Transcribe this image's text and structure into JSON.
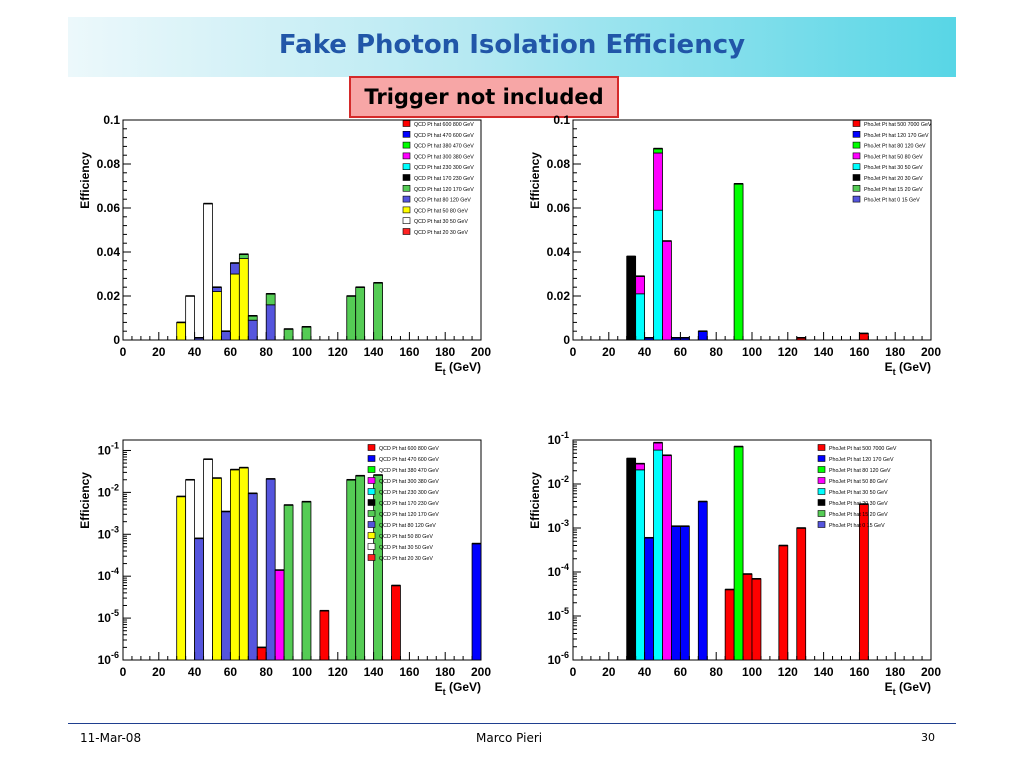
{
  "title": "Fake Photon Isolation Efficiency",
  "note": "Trigger not included",
  "footer": {
    "date": "11-Mar-08",
    "author": "Marco Pieri",
    "page": "30"
  },
  "chart_data": [
    {
      "type": "bar",
      "xlabel_main": "E",
      "xlabel_sub": "t",
      "xlabel_unit": " (GeV)",
      "ylabel": "Efficiency",
      "xlim": [
        0,
        200
      ],
      "ylim": [
        0,
        0.1
      ],
      "xticks": [
        0,
        20,
        40,
        60,
        80,
        100,
        120,
        140,
        160,
        180,
        200
      ],
      "yticks": [
        "0",
        "0.02",
        "0.04",
        "0.06",
        "0.08",
        "0.1"
      ],
      "yscale": "linear",
      "grid": false,
      "legend_position": "top-right",
      "bin_width": 5,
      "legend": [
        {
          "name": "QCD Pt hat 600 800 GeV",
          "color": "#ff0000"
        },
        {
          "name": "QCD Pt hat 470 600 GeV",
          "color": "#0000ff"
        },
        {
          "name": "QCD Pt hat 380 470 GeV",
          "color": "#00ff00"
        },
        {
          "name": "QCD Pt hat 300 380 GeV",
          "color": "#ff00ff"
        },
        {
          "name": "QCD Pt hat 230 300 GeV",
          "color": "#00ffff"
        },
        {
          "name": "QCD Pt hat 170 230 GeV",
          "color": "#000000"
        },
        {
          "name": "QCD Pt hat 120 170 GeV",
          "color": "#55cc55"
        },
        {
          "name": "QCD Pt hat 80 120 GeV",
          "color": "#5555dd"
        },
        {
          "name": "QCD Pt hat 50 80 GeV",
          "color": "#ffff00"
        },
        {
          "name": "QCD Pt hat 30 50 GeV",
          "color": "#ffffff"
        },
        {
          "name": "QCD Pt hat 20 30 GeV",
          "color": "#ff2222"
        }
      ],
      "bins": [
        {
          "x": 30,
          "segments": [
            {
              "color": "#ffff00",
              "value": 0.008
            }
          ]
        },
        {
          "x": 35,
          "segments": [
            {
              "color": "#ffffff",
              "value": 0.02
            }
          ]
        },
        {
          "x": 40,
          "segments": [
            {
              "color": "#5555dd",
              "value": 0.001
            }
          ]
        },
        {
          "x": 45,
          "segments": [
            {
              "color": "#ffffff",
              "value": 0.062
            }
          ]
        },
        {
          "x": 50,
          "segments": [
            {
              "color": "#ffff00",
              "value": 0.022
            },
            {
              "color": "#5555dd",
              "value": 0.002
            }
          ]
        },
        {
          "x": 55,
          "segments": [
            {
              "color": "#5555dd",
              "value": 0.004
            }
          ]
        },
        {
          "x": 60,
          "segments": [
            {
              "color": "#ffff00",
              "value": 0.03
            },
            {
              "color": "#5555dd",
              "value": 0.005
            }
          ]
        },
        {
          "x": 65,
          "segments": [
            {
              "color": "#ffff00",
              "value": 0.037
            },
            {
              "color": "#55cc55",
              "value": 0.002
            }
          ]
        },
        {
          "x": 70,
          "segments": [
            {
              "color": "#5555dd",
              "value": 0.009
            },
            {
              "color": "#55cc55",
              "value": 0.002
            }
          ]
        },
        {
          "x": 80,
          "segments": [
            {
              "color": "#5555dd",
              "value": 0.016
            },
            {
              "color": "#55cc55",
              "value": 0.005
            }
          ]
        },
        {
          "x": 90,
          "segments": [
            {
              "color": "#55cc55",
              "value": 0.005
            }
          ]
        },
        {
          "x": 100,
          "segments": [
            {
              "color": "#55cc55",
              "value": 0.006
            }
          ]
        },
        {
          "x": 125,
          "segments": [
            {
              "color": "#55cc55",
              "value": 0.02
            }
          ]
        },
        {
          "x": 130,
          "segments": [
            {
              "color": "#55cc55",
              "value": 0.024
            }
          ]
        },
        {
          "x": 140,
          "segments": [
            {
              "color": "#55cc55",
              "value": 0.026
            }
          ]
        }
      ]
    },
    {
      "type": "bar",
      "xlabel_main": "E",
      "xlabel_sub": "t",
      "xlabel_unit": " (GeV)",
      "ylabel": "Efficiency",
      "xlim": [
        0,
        200
      ],
      "ylim": [
        0,
        0.1
      ],
      "xticks": [
        0,
        20,
        40,
        60,
        80,
        100,
        120,
        140,
        160,
        180,
        200
      ],
      "yticks": [
        "0",
        "0.02",
        "0.04",
        "0.06",
        "0.08",
        "0.1"
      ],
      "yscale": "linear",
      "grid": false,
      "legend_position": "top-right",
      "bin_width": 5,
      "legend": [
        {
          "name": "PhoJet Pt hat 500 7000 GeV",
          "color": "#ff0000"
        },
        {
          "name": "PhoJet Pt hat 120 170 GeV",
          "color": "#0000ff"
        },
        {
          "name": "PhoJet Pt hat 80 120 GeV",
          "color": "#00ff00"
        },
        {
          "name": "PhoJet Pt hat 50 80 GeV",
          "color": "#ff00ff"
        },
        {
          "name": "PhoJet Pt hat 30 50 GeV",
          "color": "#00ffff"
        },
        {
          "name": "PhoJet Pt hat 20 30 GeV",
          "color": "#000000"
        },
        {
          "name": "PhoJet Pt hat 15 20 GeV",
          "color": "#55cc55"
        },
        {
          "name": "PhoJet Pt hat 0 15 GeV",
          "color": "#5555dd"
        }
      ],
      "bins": [
        {
          "x": 30,
          "segments": [
            {
              "color": "#000000",
              "value": 0.038
            }
          ]
        },
        {
          "x": 35,
          "segments": [
            {
              "color": "#00ffff",
              "value": 0.021
            },
            {
              "color": "#ff00ff",
              "value": 0.008
            }
          ]
        },
        {
          "x": 40,
          "segments": [
            {
              "color": "#0000ff",
              "value": 0.001
            }
          ]
        },
        {
          "x": 45,
          "segments": [
            {
              "color": "#00ffff",
              "value": 0.059
            },
            {
              "color": "#ff00ff",
              "value": 0.026
            },
            {
              "color": "#00ff00",
              "value": 0.002
            }
          ]
        },
        {
          "x": 50,
          "segments": [
            {
              "color": "#ff00ff",
              "value": 0.045
            }
          ]
        },
        {
          "x": 55,
          "segments": [
            {
              "color": "#0000ff",
              "value": 0.001
            }
          ]
        },
        {
          "x": 60,
          "segments": [
            {
              "color": "#0000ff",
              "value": 0.001
            }
          ]
        },
        {
          "x": 70,
          "segments": [
            {
              "color": "#0000ff",
              "value": 0.004
            }
          ]
        },
        {
          "x": 90,
          "segments": [
            {
              "color": "#00ff00",
              "value": 0.071
            }
          ]
        },
        {
          "x": 125,
          "segments": [
            {
              "color": "#ff0000",
              "value": 0.001
            }
          ]
        },
        {
          "x": 160,
          "segments": [
            {
              "color": "#ff0000",
              "value": 0.003
            }
          ]
        }
      ]
    },
    {
      "type": "bar",
      "xlabel_main": "E",
      "xlabel_sub": "t",
      "xlabel_unit": " (GeV)",
      "ylabel": "Efficiency",
      "xlim": [
        0,
        200
      ],
      "yscale": "log",
      "ylim_exp": [
        -6,
        -0.75
      ],
      "ytick_exps": [
        -6,
        -5,
        -4,
        -3,
        -2,
        -1
      ],
      "xticks": [
        0,
        20,
        40,
        60,
        80,
        100,
        120,
        140,
        160,
        180,
        200
      ],
      "grid": false,
      "legend_position": "top-right",
      "bin_width": 5,
      "legend": [
        {
          "name": "QCD Pt hat 600 800 GeV",
          "color": "#ff0000"
        },
        {
          "name": "QCD Pt hat 470 600 GeV",
          "color": "#0000ff"
        },
        {
          "name": "QCD Pt hat 380 470 GeV",
          "color": "#00ff00"
        },
        {
          "name": "QCD Pt hat 300 380 GeV",
          "color": "#ff00ff"
        },
        {
          "name": "QCD Pt hat 230 300 GeV",
          "color": "#00ffff"
        },
        {
          "name": "QCD Pt hat 170 230 GeV",
          "color": "#000000"
        },
        {
          "name": "QCD Pt hat 120 170 GeV",
          "color": "#55cc55"
        },
        {
          "name": "QCD Pt hat 80 120 GeV",
          "color": "#5555dd"
        },
        {
          "name": "QCD Pt hat 50 80 GeV",
          "color": "#ffff00"
        },
        {
          "name": "QCD Pt hat 30 50 GeV",
          "color": "#ffffff"
        },
        {
          "name": "QCD Pt hat 20 30 GeV",
          "color": "#ff2222"
        }
      ],
      "bins": [
        {
          "x": 30,
          "segments": [
            {
              "color": "#ffff00",
              "value": 0.008
            }
          ]
        },
        {
          "x": 35,
          "segments": [
            {
              "color": "#ffffff",
              "value": 0.02
            }
          ]
        },
        {
          "x": 40,
          "segments": [
            {
              "color": "#5555dd",
              "value": 0.0008
            }
          ]
        },
        {
          "x": 45,
          "segments": [
            {
              "color": "#ffffff",
              "value": 0.062
            }
          ]
        },
        {
          "x": 50,
          "segments": [
            {
              "color": "#ffff00",
              "value": 0.022
            }
          ]
        },
        {
          "x": 55,
          "segments": [
            {
              "color": "#5555dd",
              "value": 0.0035
            }
          ]
        },
        {
          "x": 60,
          "segments": [
            {
              "color": "#ffff00",
              "value": 0.035
            }
          ]
        },
        {
          "x": 65,
          "segments": [
            {
              "color": "#ffff00",
              "value": 0.039
            }
          ]
        },
        {
          "x": 70,
          "segments": [
            {
              "color": "#5555dd",
              "value": 0.0095
            }
          ]
        },
        {
          "x": 75,
          "segments": [
            {
              "color": "#ff0000",
              "value": 2e-06
            }
          ]
        },
        {
          "x": 80,
          "segments": [
            {
              "color": "#5555dd",
              "value": 0.021
            }
          ]
        },
        {
          "x": 85,
          "segments": [
            {
              "color": "#ff00ff",
              "value": 0.00014
            }
          ]
        },
        {
          "x": 90,
          "segments": [
            {
              "color": "#55cc55",
              "value": 0.005
            }
          ]
        },
        {
          "x": 100,
          "segments": [
            {
              "color": "#55cc55",
              "value": 0.006
            }
          ]
        },
        {
          "x": 110,
          "segments": [
            {
              "color": "#ff0000",
              "value": 1.5e-05
            }
          ]
        },
        {
          "x": 125,
          "segments": [
            {
              "color": "#55cc55",
              "value": 0.02
            }
          ]
        },
        {
          "x": 130,
          "segments": [
            {
              "color": "#55cc55",
              "value": 0.025
            }
          ]
        },
        {
          "x": 140,
          "segments": [
            {
              "color": "#55cc55",
              "value": 0.026
            }
          ]
        },
        {
          "x": 150,
          "segments": [
            {
              "color": "#ff0000",
              "value": 6e-05
            }
          ]
        },
        {
          "x": 195,
          "segments": [
            {
              "color": "#0000ff",
              "value": 0.0006
            }
          ]
        }
      ]
    },
    {
      "type": "bar",
      "xlabel_main": "E",
      "xlabel_sub": "t",
      "xlabel_unit": " (GeV)",
      "ylabel": "Efficiency",
      "xlim": [
        0,
        200
      ],
      "yscale": "log",
      "ylim_exp": [
        -6,
        -1
      ],
      "ytick_exps": [
        -6,
        -5,
        -4,
        -3,
        -2,
        -1
      ],
      "xticks": [
        0,
        20,
        40,
        60,
        80,
        100,
        120,
        140,
        160,
        180,
        200
      ],
      "grid": false,
      "legend_position": "top-right",
      "bin_width": 5,
      "legend": [
        {
          "name": "PhoJet Pt hat 500 7000 GeV",
          "color": "#ff0000"
        },
        {
          "name": "PhoJet Pt hat 120 170 GeV",
          "color": "#0000ff"
        },
        {
          "name": "PhoJet Pt hat 80 120 GeV",
          "color": "#00ff00"
        },
        {
          "name": "PhoJet Pt hat 50 80 GeV",
          "color": "#ff00ff"
        },
        {
          "name": "PhoJet Pt hat 30 50 GeV",
          "color": "#00ffff"
        },
        {
          "name": "PhoJet Pt hat 20 30 GeV",
          "color": "#000000"
        },
        {
          "name": "PhoJet Pt hat 15 20 GeV",
          "color": "#55cc55"
        },
        {
          "name": "PhoJet Pt hat 0 15 GeV",
          "color": "#5555dd"
        }
      ],
      "bins": [
        {
          "x": 30,
          "segments": [
            {
              "color": "#000000",
              "value": 0.038
            }
          ]
        },
        {
          "x": 35,
          "segments": [
            {
              "color": "#00ffff",
              "value": 0.021
            },
            {
              "color": "#ff00ff",
              "value": 0.008
            }
          ]
        },
        {
          "x": 40,
          "segments": [
            {
              "color": "#0000ff",
              "value": 0.0006
            }
          ]
        },
        {
          "x": 45,
          "segments": [
            {
              "color": "#00ffff",
              "value": 0.059
            },
            {
              "color": "#ff00ff",
              "value": 0.028
            }
          ]
        },
        {
          "x": 50,
          "segments": [
            {
              "color": "#ff00ff",
              "value": 0.045
            }
          ]
        },
        {
          "x": 55,
          "segments": [
            {
              "color": "#0000ff",
              "value": 0.0011
            }
          ]
        },
        {
          "x": 60,
          "segments": [
            {
              "color": "#0000ff",
              "value": 0.0011
            }
          ]
        },
        {
          "x": 70,
          "segments": [
            {
              "color": "#0000ff",
              "value": 0.004
            }
          ]
        },
        {
          "x": 85,
          "segments": [
            {
              "color": "#ff0000",
              "value": 4e-05
            }
          ]
        },
        {
          "x": 90,
          "segments": [
            {
              "color": "#00ff00",
              "value": 0.071
            }
          ]
        },
        {
          "x": 95,
          "segments": [
            {
              "color": "#ff0000",
              "value": 9e-05
            }
          ]
        },
        {
          "x": 100,
          "segments": [
            {
              "color": "#ff0000",
              "value": 7e-05
            }
          ]
        },
        {
          "x": 115,
          "segments": [
            {
              "color": "#ff0000",
              "value": 0.0004
            }
          ]
        },
        {
          "x": 125,
          "segments": [
            {
              "color": "#ff0000",
              "value": 0.001
            }
          ]
        },
        {
          "x": 160,
          "segments": [
            {
              "color": "#ff0000",
              "value": 0.0035
            }
          ]
        }
      ]
    }
  ]
}
